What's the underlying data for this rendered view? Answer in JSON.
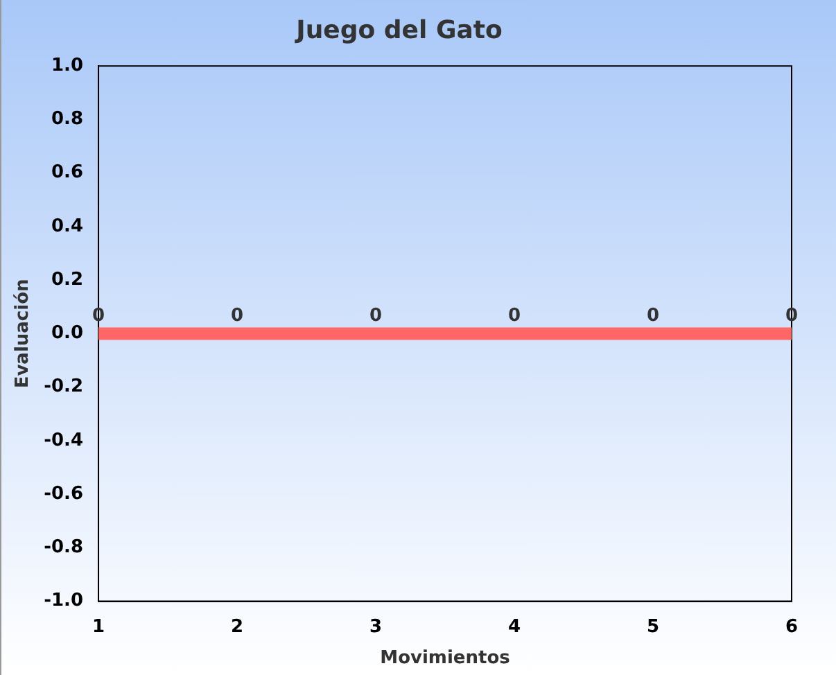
{
  "chart_data": {
    "type": "line",
    "title": "Juego del Gato",
    "xlabel": "Movimientos",
    "ylabel": "Evaluación",
    "x": [
      1,
      2,
      3,
      4,
      5,
      6
    ],
    "series": [
      {
        "color": "#ff6666",
        "values": [
          0,
          0,
          0,
          0,
          0,
          0
        ]
      }
    ],
    "xlim": [
      1,
      6
    ],
    "xticks": [
      1,
      2,
      3,
      4,
      5,
      6
    ],
    "ylim": [
      -1,
      1
    ],
    "yticks": [
      {
        "value": -1,
        "label": "-1.0"
      },
      {
        "value": -0.8,
        "label": "-0.8"
      },
      {
        "value": -0.6,
        "label": "-0.6"
      },
      {
        "value": -0.4,
        "label": "-0.4"
      },
      {
        "value": -0.2,
        "label": "-0.2"
      },
      {
        "value": 0,
        "label": "0.0"
      },
      {
        "value": 0.2,
        "label": "0.2"
      },
      {
        "value": 0.4,
        "label": "0.4"
      },
      {
        "value": 0.6,
        "label": "0.6"
      },
      {
        "value": 0.8,
        "label": "0.8"
      },
      {
        "value": 1,
        "label": "1.0"
      }
    ],
    "grid": false,
    "legend": false,
    "marker": "none",
    "data_labels": true
  }
}
